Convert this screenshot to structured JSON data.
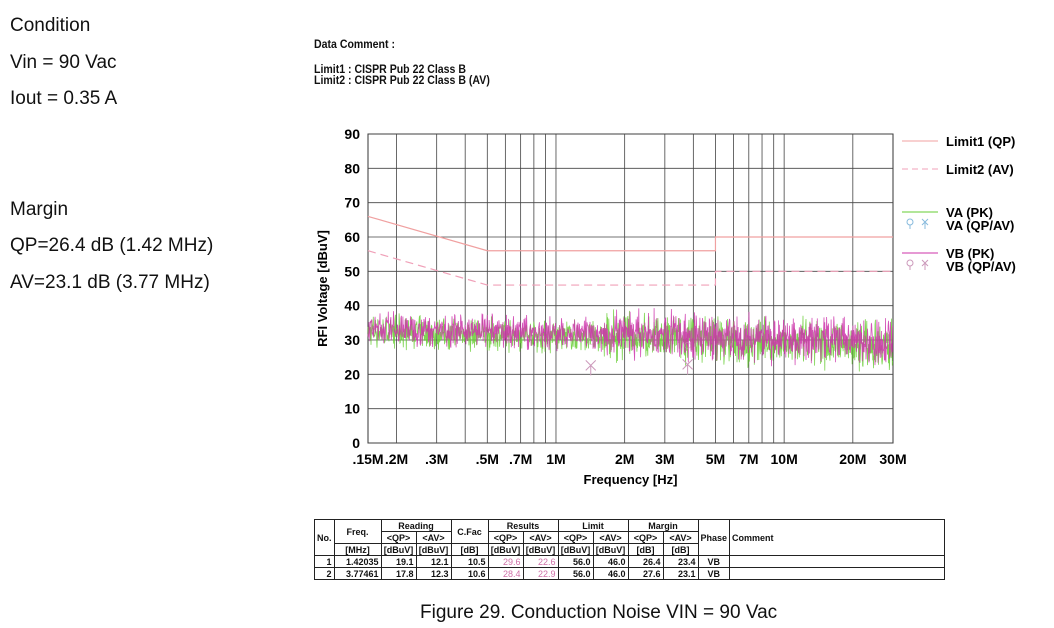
{
  "conditions": {
    "title": "Condition",
    "vin": "Vin = 90 Vac",
    "iout": "Iout = 0.35 A",
    "margin_title": "Margin",
    "qp": "QP=26.4 dB (1.42 MHz)",
    "av": "AV=23.1 dB (3.77 MHz)"
  },
  "header": {
    "data_comment": "Data Comment      :",
    "limit1": "Limit1 :  CISPR Pub 22 Class B",
    "limit2": "Limit2 :  CISPR Pub 22 Class B (AV)"
  },
  "chart_data": {
    "type": "line",
    "xlabel": "Frequency [Hz]",
    "ylabel": "RFI Voltage [dBuV]",
    "xscale": "log",
    "xlim": [
      0.15,
      30
    ],
    "ylim": [
      0,
      90
    ],
    "yticks": [
      0,
      10,
      20,
      30,
      40,
      50,
      60,
      70,
      80,
      90
    ],
    "xticks": [
      {
        "v": 0.15,
        "l": ".15M"
      },
      {
        "v": 0.2,
        "l": ".2M"
      },
      {
        "v": 0.3,
        "l": ".3M"
      },
      {
        "v": 0.5,
        "l": ".5M"
      },
      {
        "v": 0.7,
        "l": ".7M"
      },
      {
        "v": 1,
        "l": "1M"
      },
      {
        "v": 2,
        "l": "2M"
      },
      {
        "v": 3,
        "l": "3M"
      },
      {
        "v": 5,
        "l": "5M"
      },
      {
        "v": 7,
        "l": "7M"
      },
      {
        "v": 10,
        "l": "10M"
      },
      {
        "v": 20,
        "l": "20M"
      },
      {
        "v": 30,
        "l": "30M"
      }
    ],
    "limits": [
      {
        "name": "Limit1 (QP)",
        "color": "#f0a0a0",
        "dash": false,
        "points": [
          [
            0.15,
            66
          ],
          [
            0.5,
            56
          ],
          [
            5,
            56
          ],
          [
            5,
            60
          ],
          [
            30,
            60
          ]
        ]
      },
      {
        "name": "Limit2 (AV)",
        "color": "#f0a0b8",
        "dash": true,
        "points": [
          [
            0.15,
            56
          ],
          [
            0.5,
            46
          ],
          [
            5,
            46
          ],
          [
            5,
            50
          ],
          [
            30,
            50
          ]
        ]
      }
    ],
    "series": [
      {
        "name": "VA (PK)",
        "color": "#66cc33"
      },
      {
        "name": "VA (QP/AV)",
        "color": "#88bbdd"
      },
      {
        "name": "VB (PK)",
        "color": "#cc33aa"
      },
      {
        "name": "VB (QP/AV)",
        "color": "#cc99bb"
      }
    ],
    "markers": [
      {
        "freq": 1.42035,
        "qp": 29.6,
        "av": 22.6
      },
      {
        "freq": 3.77461,
        "qp": 28.4,
        "av": 22.9
      }
    ],
    "noise_level_note": "approx 30-35 dBuV decreasing to ~28 dBuV at 30 MHz"
  },
  "table": {
    "h1": [
      "No.",
      "Freq.",
      "Reading",
      "C.Fac",
      "Results",
      "Limit",
      "Margin",
      "Phase",
      "Comment"
    ],
    "h2": [
      "<QP>",
      "<AV>",
      "<QP>",
      "<AV>",
      "<QP>",
      "<AV>",
      "<QP>",
      "<AV>"
    ],
    "units": [
      "[MHz]",
      "[dBuV]",
      "[dBuV]",
      "[dB]",
      "[dBuV]",
      "[dBuV]",
      "[dBuV]",
      "[dBuV]",
      "[dB]",
      "[dB]"
    ],
    "rows": [
      [
        "1",
        "1.42035",
        "19.1",
        "12.1",
        "10.5",
        "29.6",
        "22.6",
        "56.0",
        "46.0",
        "26.4",
        "23.4",
        "VB",
        ""
      ],
      [
        "2",
        "3.77461",
        "17.8",
        "12.3",
        "10.6",
        "28.4",
        "22.9",
        "56.0",
        "46.0",
        "27.6",
        "23.1",
        "VB",
        ""
      ]
    ]
  },
  "caption": "Figure 29. Conduction Noise VIN = 90 Vac"
}
